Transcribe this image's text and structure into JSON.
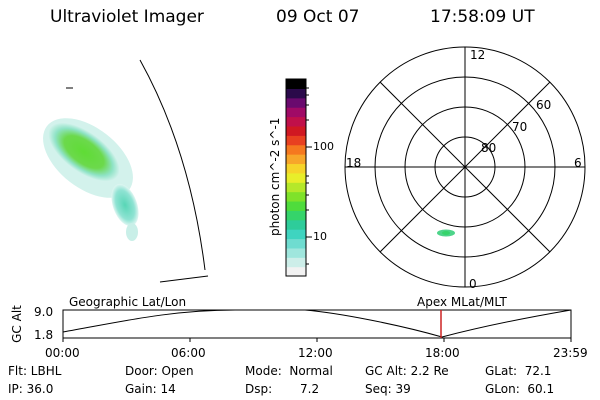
{
  "header": {
    "instrument": "Ultraviolet Imager",
    "date": "09 Oct 07",
    "time": "17:58:09 UT"
  },
  "colorbar": {
    "label": "photon cm^-2 s^-1",
    "ticks": [
      "100",
      "10"
    ],
    "colors": [
      "#f2f2f2",
      "#cdeee9",
      "#9fe6dd",
      "#6fdcd0",
      "#3fd4c0",
      "#2ecc9a",
      "#35d46a",
      "#4fdc3c",
      "#7fe22a",
      "#b5e82a",
      "#e8ee2a",
      "#f6d42a",
      "#f7a62a",
      "#f5781f",
      "#e84020",
      "#d01822",
      "#c0104a",
      "#a00a66",
      "#6a0a6e",
      "#2a0a4a",
      "#000000"
    ]
  },
  "polar": {
    "labels": {
      "noon": "12",
      "dusk": "18",
      "dawn": "6",
      "midnight": "0"
    },
    "lat_labels": [
      "60",
      "70",
      "80"
    ]
  },
  "orbit_panel": {
    "ylabel": "GC Alt",
    "yticks": [
      "9.0",
      "1.8"
    ],
    "left_title": "Geographic Lat/Lon",
    "right_title": "Apex MLat/MLT",
    "xticks": [
      "00:00",
      "06:00",
      "12:00",
      "18:00",
      "23:59"
    ]
  },
  "meta": {
    "filter": "Flt: LBHL",
    "ip": "IP: 36.0",
    "door": "Door: Open",
    "gain": "Gain: 14",
    "mode": "Mode:  Normal",
    "dsp_label": "Dsp:",
    "dsp_value": "7.2",
    "gc_alt": "GC Alt: 2.2 Re",
    "seq": "Seq: 39",
    "glat": "GLat:  72.1",
    "glon": "GLon:  60.1"
  }
}
